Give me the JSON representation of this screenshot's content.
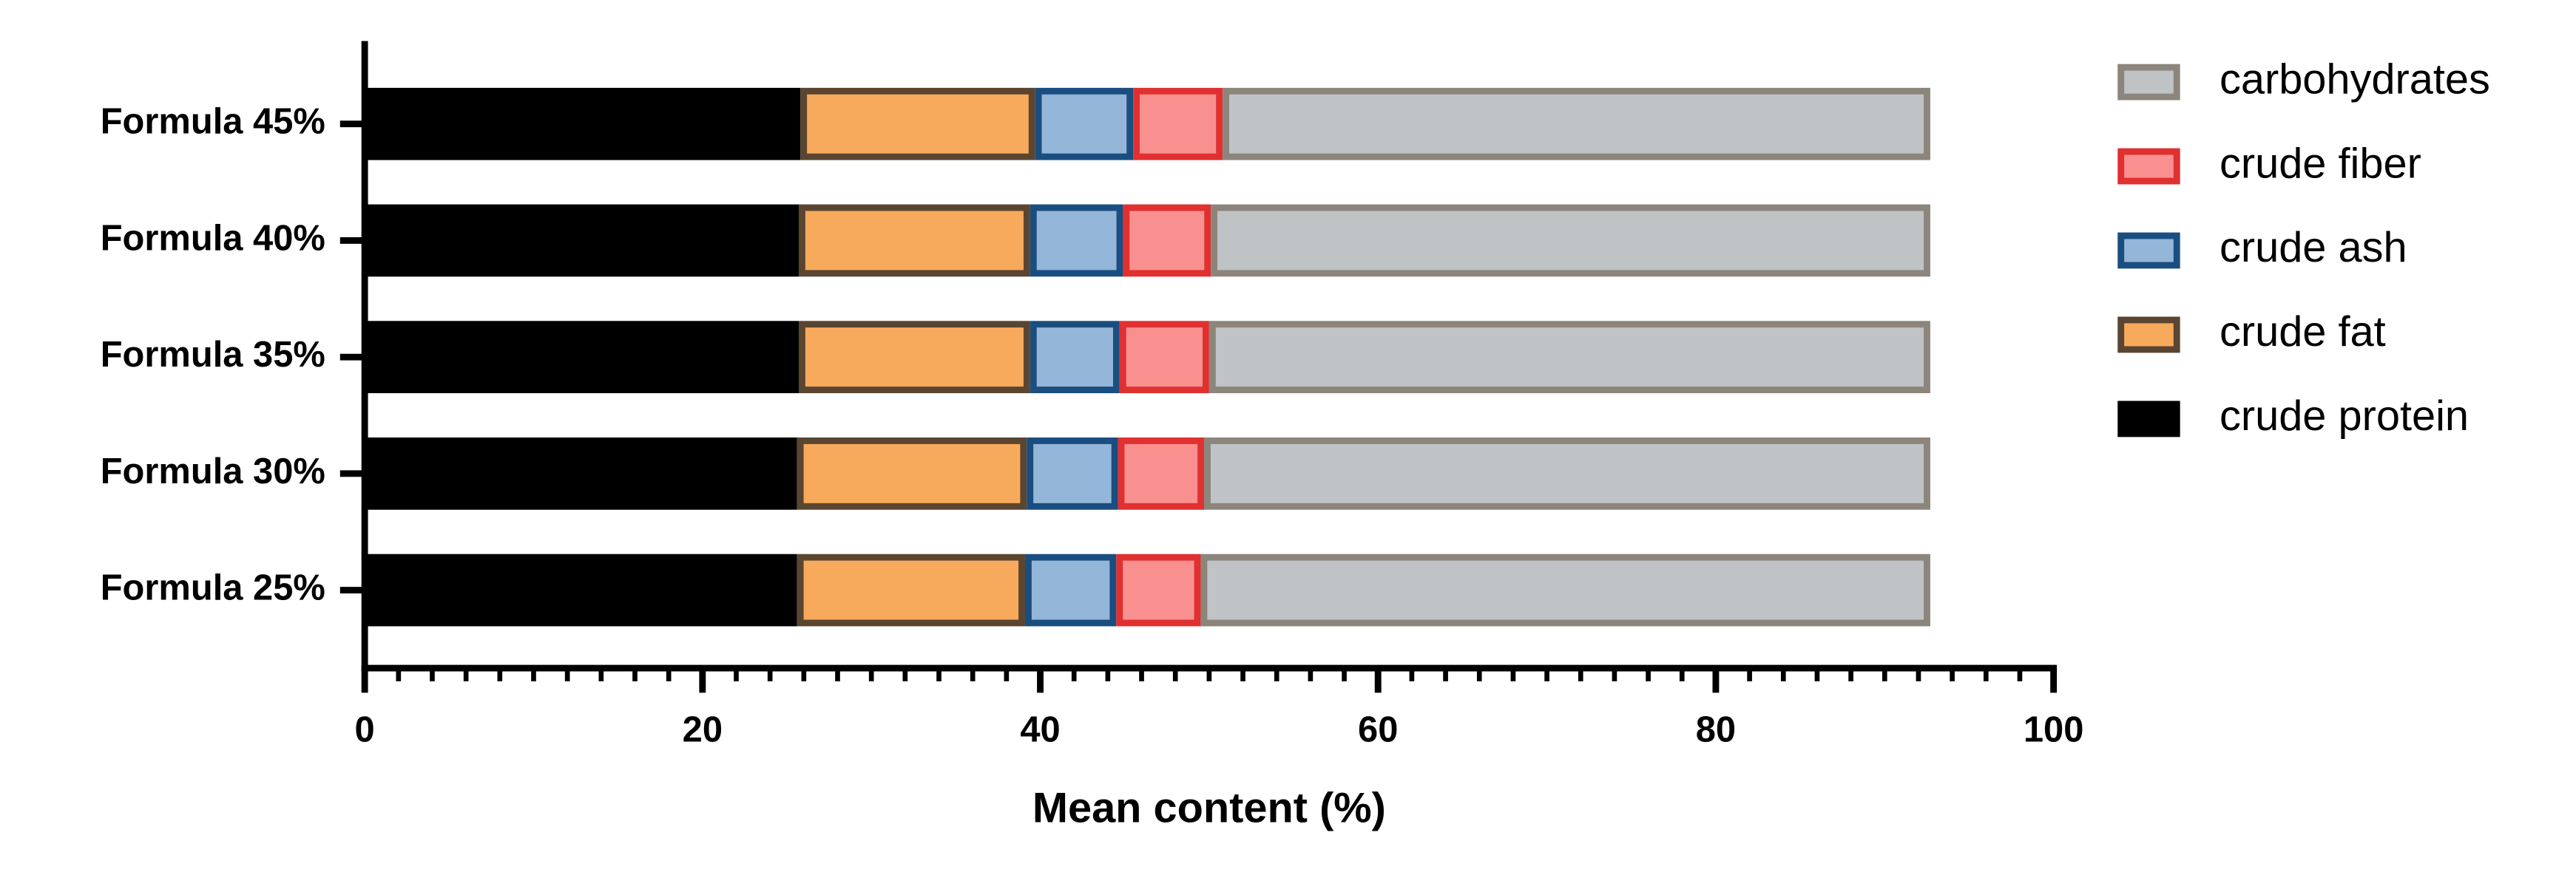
{
  "chart_data": {
    "type": "stacked-barh",
    "xlabel": "Mean content (%)",
    "categories": [
      "Formula 45%",
      "Formula 40%",
      "Formula 35%",
      "Formula 30%",
      "Formula 25%"
    ],
    "series": [
      {
        "name": "crude protein",
        "color": "#000000",
        "edgecolor": "#000000",
        "values": [
          25.8,
          25.7,
          25.7,
          25.6,
          25.6
        ]
      },
      {
        "name": "crude fat",
        "color": "#f8aa5c",
        "edgecolor": "#5a4530",
        "values": [
          13.9,
          13.7,
          13.7,
          13.6,
          13.5
        ]
      },
      {
        "name": "crude ash",
        "color": "#94b6d8",
        "edgecolor": "#1a4e80",
        "values": [
          5.8,
          5.5,
          5.3,
          5.4,
          5.4
        ]
      },
      {
        "name": "crude fiber",
        "color": "#f99090",
        "edgecolor": "#e03030",
        "values": [
          5.3,
          5.2,
          5.3,
          5.1,
          5.0
        ]
      },
      {
        "name": "carbohydrates",
        "color": "#bfc3c6",
        "edgecolor": "#8c857b",
        "values": [
          41.9,
          42.6,
          42.7,
          43.0,
          43.2
        ]
      }
    ],
    "xlim": [
      0,
      100
    ],
    "xticks": [
      0,
      20,
      40,
      60,
      80,
      100
    ],
    "minor_tick_step": 2,
    "legend": "right",
    "legend_order": "reversed"
  }
}
